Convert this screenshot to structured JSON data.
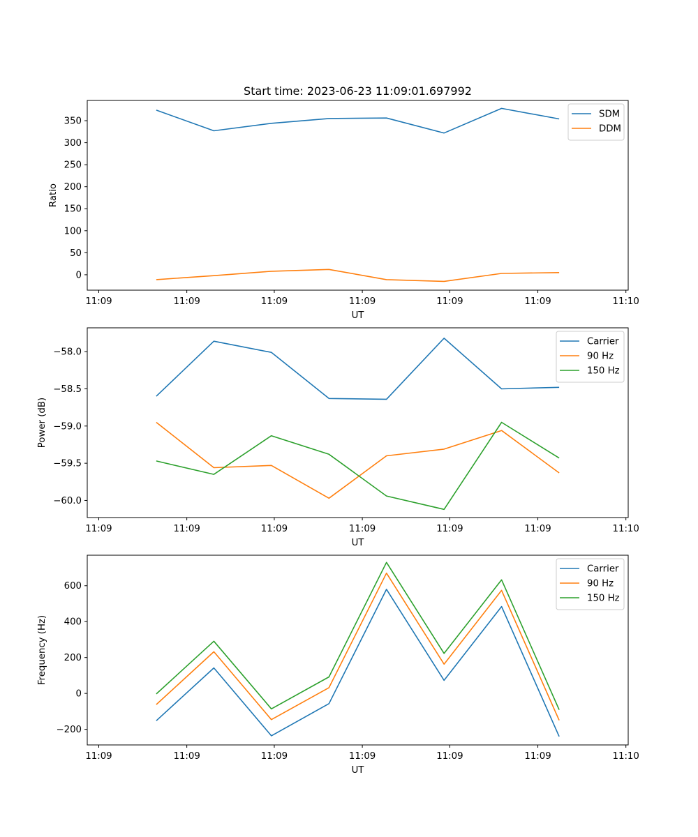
{
  "title": "Start time: 2023-06-23 11:09:01.697992",
  "chart_data": [
    {
      "type": "line",
      "xlabel": "UT",
      "ylabel": "Ratio",
      "x": [
        1.0,
        2.0,
        3.0,
        4.0,
        5.0,
        6.0,
        7.0,
        8.0
      ],
      "xticks": [
        0.0,
        1.53,
        3.05,
        4.58,
        6.1,
        7.63,
        9.16
      ],
      "xtick_labels": [
        "11:09",
        "11:09",
        "11:09",
        "11:09",
        "11:09",
        "11:09",
        "11:10"
      ],
      "xlim": [
        -0.2,
        9.2
      ],
      "ylim": [
        -35,
        396
      ],
      "yticks": [
        0,
        50,
        100,
        150,
        200,
        250,
        300,
        350
      ],
      "ytick_labels": [
        "0",
        "50",
        "100",
        "150",
        "200",
        "250",
        "300",
        "350"
      ],
      "legend_position": "top-right",
      "series": [
        {
          "name": "SDM",
          "color": "#1f77b4",
          "values": [
            374,
            327,
            344,
            355,
            356,
            322,
            378,
            354
          ]
        },
        {
          "name": "DDM",
          "color": "#ff7f0e",
          "values": [
            -11,
            -2,
            8,
            12,
            -11,
            -15,
            3,
            5
          ]
        }
      ]
    },
    {
      "type": "line",
      "xlabel": "UT",
      "ylabel": "Power (dB)",
      "x": [
        1.0,
        2.0,
        3.0,
        4.0,
        5.0,
        6.0,
        7.0,
        8.0
      ],
      "xticks": [
        0.0,
        1.53,
        3.05,
        4.58,
        6.1,
        7.63,
        9.16
      ],
      "xtick_labels": [
        "11:09",
        "11:09",
        "11:09",
        "11:09",
        "11:09",
        "11:09",
        "11:10"
      ],
      "xlim": [
        -0.2,
        9.2
      ],
      "ylim": [
        -60.23,
        -57.68
      ],
      "yticks": [
        -60.0,
        -59.5,
        -59.0,
        -58.5,
        -58.0
      ],
      "ytick_labels": [
        "−60.0",
        "−59.5",
        "−59.0",
        "−58.5",
        "−58.0"
      ],
      "legend_position": "top-right",
      "series": [
        {
          "name": "Carrier",
          "color": "#1f77b4",
          "values": [
            -58.6,
            -57.86,
            -58.01,
            -58.63,
            -58.64,
            -57.82,
            -58.5,
            -58.48
          ]
        },
        {
          "name": "90 Hz",
          "color": "#ff7f0e",
          "values": [
            -58.95,
            -59.56,
            -59.53,
            -59.97,
            -59.4,
            -59.31,
            -59.06,
            -59.63
          ]
        },
        {
          "name": "150 Hz",
          "color": "#2ca02c",
          "values": [
            -59.47,
            -59.65,
            -59.13,
            -59.38,
            -59.94,
            -60.12,
            -58.95,
            -59.43
          ]
        }
      ]
    },
    {
      "type": "line",
      "xlabel": "UT",
      "ylabel": "Frequency (Hz)",
      "x": [
        1.0,
        2.0,
        3.0,
        4.0,
        5.0,
        6.0,
        7.0,
        8.0
      ],
      "xticks": [
        0.0,
        1.53,
        3.05,
        4.58,
        6.1,
        7.63,
        9.16
      ],
      "xtick_labels": [
        "11:09",
        "11:09",
        "11:09",
        "11:09",
        "11:09",
        "11:09",
        "11:10"
      ],
      "xlim": [
        -0.2,
        9.2
      ],
      "ylim": [
        -287,
        770
      ],
      "yticks": [
        -200,
        0,
        200,
        400,
        600
      ],
      "ytick_labels": [
        "−200",
        "0",
        "200",
        "400",
        "600"
      ],
      "legend_position": "top-right",
      "series": [
        {
          "name": "Carrier",
          "color": "#1f77b4",
          "values": [
            -152,
            142,
            -236,
            -57,
            580,
            73,
            484,
            -240
          ]
        },
        {
          "name": "90 Hz",
          "color": "#ff7f0e",
          "values": [
            -62,
            232,
            -146,
            32,
            670,
            163,
            574,
            -150
          ]
        },
        {
          "name": "150 Hz",
          "color": "#2ca02c",
          "values": [
            -3,
            291,
            -86,
            92,
            730,
            223,
            633,
            -91
          ]
        }
      ]
    }
  ]
}
